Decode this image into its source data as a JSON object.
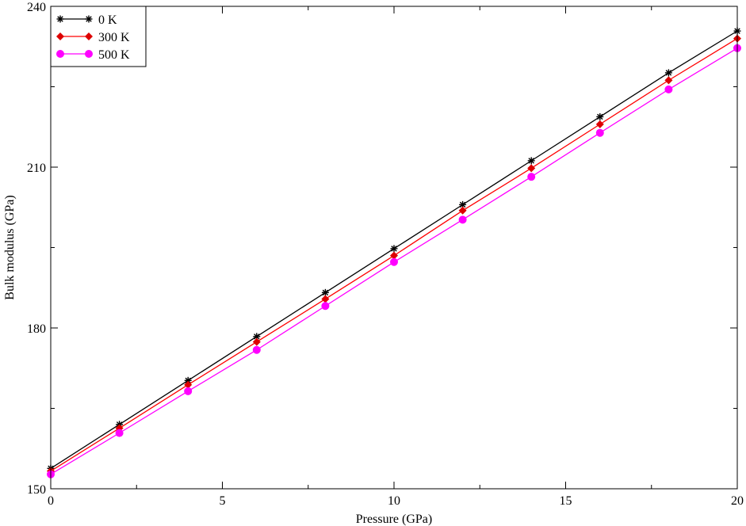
{
  "chart_data": {
    "type": "line",
    "title": "",
    "xlabel": "Pressure (GPa)",
    "ylabel": "Bulk modulus  (GPa)",
    "xlim": [
      0,
      20
    ],
    "ylim": [
      150,
      240
    ],
    "xticks_major": [
      0,
      5,
      10,
      15,
      20
    ],
    "xticks_minor": [
      2.5,
      7.5,
      12.5,
      17.5
    ],
    "yticks_major": [
      150,
      180,
      210,
      240
    ],
    "yticks_minor": [
      165,
      195,
      225
    ],
    "x_tick_labels": [
      "0",
      "5",
      "10",
      "15",
      "20"
    ],
    "y_tick_labels": [
      "150",
      "180",
      "210",
      "240"
    ],
    "grid": false,
    "legend_position": "top-left",
    "x": [
      0,
      2,
      4,
      6,
      8,
      10,
      12,
      14,
      16,
      18,
      20
    ],
    "series": [
      {
        "name": "0 K",
        "color": "#000000",
        "marker": "asterisk",
        "values": [
          153.8,
          162.0,
          170.2,
          178.4,
          186.6,
          194.8,
          203.0,
          211.2,
          219.4,
          227.6,
          235.4
        ]
      },
      {
        "name": "300 K",
        "color": "#ff0000",
        "marker_color": "#dd0000",
        "marker": "diamond",
        "values": [
          153.3,
          161.3,
          169.4,
          177.4,
          185.4,
          193.5,
          201.9,
          209.8,
          218.0,
          226.2,
          234.0
        ]
      },
      {
        "name": "500 K",
        "color": "#ff00ff",
        "marker": "circle",
        "values": [
          152.7,
          160.4,
          168.2,
          175.9,
          184.1,
          192.3,
          200.2,
          208.2,
          216.4,
          224.5,
          232.2
        ]
      }
    ]
  }
}
